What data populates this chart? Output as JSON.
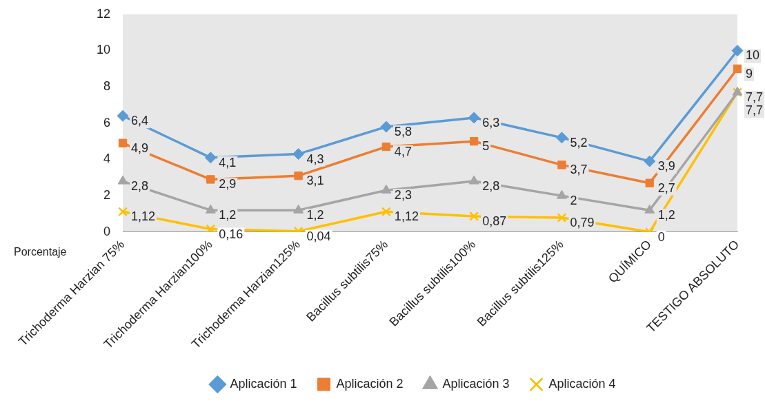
{
  "chart_data": {
    "type": "line",
    "ylabel": "Porcentaje",
    "categories": [
      "Trichoderma Harzian 75%",
      "Trichoderma Harzian100%",
      "Trichoderma Harzian125%",
      "Bacillus subtilis75%",
      "Bacillus subtilis100%",
      "Bacillus subtilis125%",
      "QUÍMICO",
      "TESTIGO ABSOLUTO"
    ],
    "series": [
      {
        "name": "Aplicación 1",
        "color": "#5b9bd5",
        "marker": "diamond",
        "values": [
          6.4,
          4.1,
          4.3,
          5.8,
          6.3,
          5.2,
          3.9,
          10
        ],
        "value_labels": [
          "6,4",
          "4,1",
          "4,3",
          "5,8",
          "6,3",
          "5,2",
          "3,9",
          "10"
        ]
      },
      {
        "name": "Aplicación 2",
        "color": "#ed7d31",
        "marker": "square",
        "values": [
          4.9,
          2.9,
          3.1,
          4.7,
          5,
          3.7,
          2.7,
          9
        ],
        "value_labels": [
          "4,9",
          "2,9",
          "3,1",
          "4,7",
          "5",
          "3,7",
          "2,7",
          "9"
        ]
      },
      {
        "name": "Aplicación 3",
        "color": "#a5a5a5",
        "marker": "triangle",
        "values": [
          2.8,
          1.2,
          1.2,
          2.3,
          2.8,
          2,
          1.2,
          7.7
        ],
        "value_labels": [
          "2,8",
          "1,2",
          "1,2",
          "2,3",
          "2,8",
          "2",
          "1,2",
          "7,7"
        ]
      },
      {
        "name": "Aplicación 4",
        "color": "#ffc000",
        "marker": "cross",
        "values": [
          1.12,
          0.16,
          0.04,
          1.12,
          0.87,
          0.79,
          0,
          7.7
        ],
        "value_labels": [
          "1,12",
          "0,16",
          "0,04",
          "1,12",
          "0,87",
          "0,79",
          "0",
          "7,7"
        ]
      }
    ],
    "ylim": [
      0,
      12
    ],
    "yticks": [
      0,
      2,
      4,
      6,
      8,
      10,
      12
    ],
    "grid": false,
    "legend": "bottom",
    "line_style": "solid"
  }
}
